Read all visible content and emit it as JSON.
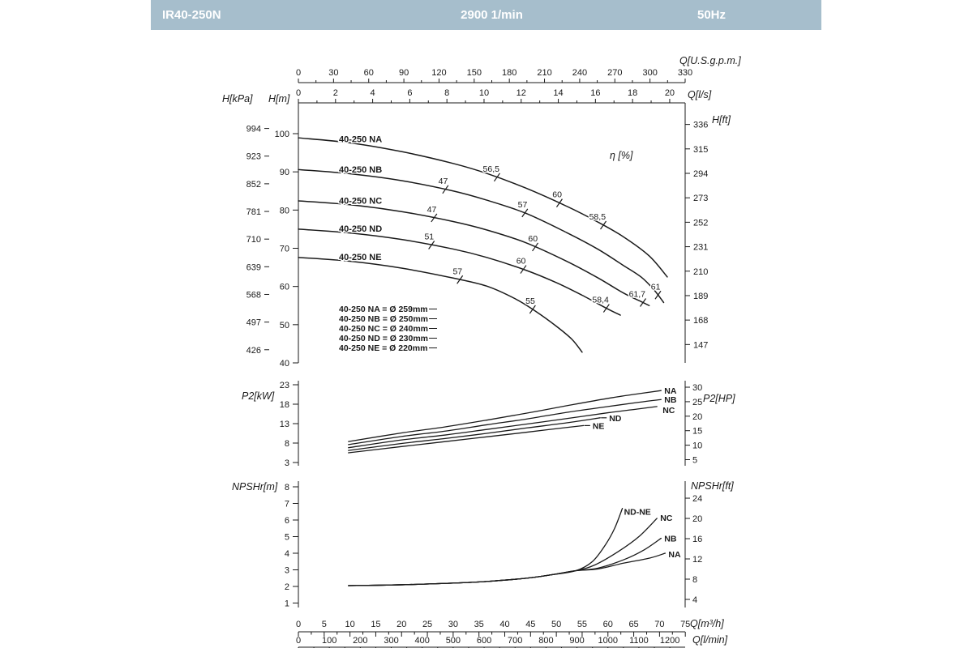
{
  "header": {
    "model": "IR40-250N",
    "speed": "2900 1/min",
    "frequency": "50Hz"
  },
  "chart_data": {
    "type": "line",
    "x_unit": "m3/h",
    "x_range": [
      0,
      75
    ],
    "x_axes": {
      "gpm": {
        "label": "Q[U.S.g.p.m.]",
        "ticks": [
          0,
          30,
          60,
          90,
          120,
          150,
          180,
          210,
          240,
          270,
          300,
          330
        ]
      },
      "ls": {
        "label": "Q[l/s]",
        "ticks": [
          0,
          2,
          4,
          6,
          8,
          10,
          12,
          14,
          16,
          18,
          20
        ]
      },
      "m3h": {
        "label": "Q[m³/h]",
        "ticks": [
          0,
          5,
          10,
          15,
          20,
          25,
          30,
          35,
          40,
          45,
          50,
          55,
          60,
          65,
          70,
          75
        ]
      },
      "lmin": {
        "label": "Q[l/min]",
        "ticks": [
          0,
          100,
          200,
          300,
          400,
          500,
          600,
          700,
          800,
          900,
          1000,
          1100,
          1200
        ]
      }
    },
    "head_chart": {
      "y_axes": {
        "kpa": {
          "label": "H[kPa]",
          "ticks": [
            994,
            923,
            852,
            781,
            710,
            639,
            568,
            497,
            426
          ]
        },
        "m": {
          "label": "H[m]",
          "ticks": [
            100,
            90,
            80,
            70,
            60,
            50,
            40
          ],
          "range": [
            40,
            105
          ]
        },
        "ft": {
          "label": "H[ft]",
          "ticks": [
            336,
            315,
            294,
            273,
            252,
            231,
            210,
            189,
            168,
            147
          ]
        }
      },
      "efficiency_label": "η [%]",
      "curves": [
        {
          "name": "40-250 NA",
          "impeller": "Ø 259mm",
          "points": [
            [
              0,
              98.9
            ],
            [
              10,
              97.6
            ],
            [
              20,
              95.3
            ],
            [
              30,
              92.2
            ],
            [
              36.5,
              89.6
            ],
            [
              44,
              85.8
            ],
            [
              52,
              81.0
            ],
            [
              58,
              76.9
            ],
            [
              63,
              73.0
            ],
            [
              68,
              68.0
            ],
            [
              71.5,
              62.5
            ]
          ]
        },
        {
          "name": "40-250 NB",
          "impeller": "Ø 250mm",
          "points": [
            [
              0,
              90.6
            ],
            [
              10,
              89.5
            ],
            [
              20,
              87.7
            ],
            [
              30,
              85.0
            ],
            [
              36.5,
              82.6
            ],
            [
              44,
              79.2
            ],
            [
              52,
              74.1
            ],
            [
              58,
              69.8
            ],
            [
              63,
              65.5
            ],
            [
              66.5,
              62.4
            ],
            [
              69,
              59.0
            ],
            [
              70.8,
              55.8
            ]
          ]
        },
        {
          "name": "40-250 NC",
          "impeller": "Ø 240mm",
          "points": [
            [
              0,
              82.4
            ],
            [
              10,
              81.4
            ],
            [
              20,
              79.6
            ],
            [
              30,
              77.0
            ],
            [
              36.5,
              74.8
            ],
            [
              44,
              71.5
            ],
            [
              52,
              66.6
            ],
            [
              58,
              62.3
            ],
            [
              63,
              58.3
            ],
            [
              66.5,
              56.0
            ],
            [
              68,
              55.0
            ]
          ]
        },
        {
          "name": "40-250 ND",
          "impeller": "Ø 230mm",
          "points": [
            [
              0,
              75.0
            ],
            [
              10,
              74.0
            ],
            [
              20,
              72.3
            ],
            [
              30,
              69.8
            ],
            [
              36.5,
              67.6
            ],
            [
              44,
              64.3
            ],
            [
              50,
              61.0
            ],
            [
              55,
              57.7
            ],
            [
              59.7,
              54.3
            ],
            [
              62.4,
              52.5
            ]
          ]
        },
        {
          "name": "40-250 NE",
          "impeller": "Ø 220mm",
          "points": [
            [
              0,
              67.6
            ],
            [
              10,
              66.6
            ],
            [
              20,
              64.8
            ],
            [
              30,
              62.2
            ],
            [
              36.5,
              60.1
            ],
            [
              42,
              56.8
            ],
            [
              46,
              53.5
            ],
            [
              50,
              49.6
            ],
            [
              53,
              46.2
            ],
            [
              55,
              42.8
            ]
          ]
        }
      ],
      "efficiency_marks": [
        {
          "label": "47",
          "curve": 1,
          "q": 28.5
        },
        {
          "label": "56,5",
          "curve": 0,
          "q": 38.5
        },
        {
          "label": "47",
          "curve": 2,
          "q": 26.3
        },
        {
          "label": "57",
          "curve": 1,
          "q": 43.9
        },
        {
          "label": "60",
          "curve": 0,
          "q": 50.6
        },
        {
          "label": "58,5",
          "curve": 0,
          "q": 59.1
        },
        {
          "label": "51",
          "curve": 3,
          "q": 25.8
        },
        {
          "label": "60",
          "curve": 2,
          "q": 45.9
        },
        {
          "label": "60",
          "curve": 3,
          "q": 43.6
        },
        {
          "label": "57",
          "curve": 4,
          "q": 31.3
        },
        {
          "label": "55",
          "curve": 4,
          "q": 45.4
        },
        {
          "label": "58,4",
          "curve": 3,
          "q": 59.7
        },
        {
          "label": "61,7",
          "curve": 2,
          "q": 66.8
        },
        {
          "label": "61",
          "curve": 1,
          "q": 69.7
        }
      ],
      "legend": [
        "40-250 NA = Ø 259mm",
        "40-250 NB = Ø 250mm",
        "40-250 NC = Ø 240mm",
        "40-250 ND = Ø 230mm",
        "40-250 NE = Ø 220mm"
      ]
    },
    "power_chart": {
      "y_axes": {
        "kw": {
          "label": "P2[kW]",
          "ticks": [
            23,
            18,
            13,
            8,
            3
          ]
        },
        "hp": {
          "label": "P2[HP]",
          "ticks": [
            30,
            25,
            20,
            15,
            10,
            5
          ]
        }
      },
      "curves": [
        {
          "name": "NA",
          "points": [
            [
              9.7,
              8.4
            ],
            [
              20,
              10.6
            ],
            [
              28.6,
              12.2
            ],
            [
              36.5,
              13.9
            ],
            [
              44.3,
              15.7
            ],
            [
              52,
              17.6
            ],
            [
              60,
              19.5
            ],
            [
              66,
              20.7
            ],
            [
              70.3,
              21.5
            ]
          ]
        },
        {
          "name": "NB",
          "points": [
            [
              9.7,
              7.6
            ],
            [
              20,
              9.7
            ],
            [
              28.6,
              11.1
            ],
            [
              36.5,
              12.7
            ],
            [
              44.3,
              14.2
            ],
            [
              52,
              15.9
            ],
            [
              60,
              17.4
            ],
            [
              66,
              18.5
            ],
            [
              70.3,
              19.2
            ]
          ]
        },
        {
          "name": "NC",
          "points": [
            [
              9.7,
              6.8
            ],
            [
              20,
              8.8
            ],
            [
              28.6,
              10.1
            ],
            [
              36.5,
              11.5
            ],
            [
              44.3,
              12.9
            ],
            [
              52,
              14.3
            ],
            [
              60,
              15.8
            ],
            [
              66,
              16.8
            ],
            [
              69.5,
              17.4
            ]
          ]
        },
        {
          "name": "ND",
          "points": [
            [
              9.7,
              6.1
            ],
            [
              20,
              7.9
            ],
            [
              28.6,
              9.2
            ],
            [
              36.5,
              10.5
            ],
            [
              44.3,
              11.9
            ],
            [
              52,
              13.2
            ],
            [
              58.5,
              14.5
            ]
          ]
        },
        {
          "name": "NE",
          "points": [
            [
              9.7,
              5.5
            ],
            [
              20,
              7.1
            ],
            [
              28.6,
              8.4
            ],
            [
              36.5,
              9.6
            ],
            [
              44.3,
              10.8
            ],
            [
              50,
              11.7
            ],
            [
              55.3,
              12.5
            ]
          ]
        }
      ]
    },
    "npsh_chart": {
      "y_axes": {
        "m": {
          "label": "NPSHr[m]",
          "ticks": [
            8,
            7,
            6,
            5,
            4,
            3,
            2,
            1
          ]
        },
        "ft": {
          "label": "NPSHr[ft]",
          "ticks": [
            24,
            20,
            16,
            12,
            8,
            4
          ]
        }
      },
      "curves": [
        {
          "name": "ND-NE",
          "points": [
            [
              9.7,
              2.05
            ],
            [
              20,
              2.1
            ],
            [
              30,
              2.2
            ],
            [
              36.5,
              2.3
            ],
            [
              44.3,
              2.5
            ],
            [
              49,
              2.7
            ],
            [
              53.8,
              2.95
            ],
            [
              57,
              3.5
            ],
            [
              59.5,
              4.5
            ],
            [
              61.3,
              5.5
            ],
            [
              62.8,
              6.7
            ]
          ]
        },
        {
          "name": "NC",
          "points": [
            [
              9.7,
              2.05
            ],
            [
              20,
              2.1
            ],
            [
              30,
              2.2
            ],
            [
              36.5,
              2.3
            ],
            [
              44.3,
              2.5
            ],
            [
              49,
              2.7
            ],
            [
              53.8,
              2.95
            ],
            [
              57.5,
              3.3
            ],
            [
              62,
              4.1
            ],
            [
              66,
              5.0
            ],
            [
              69.5,
              6.1
            ]
          ]
        },
        {
          "name": "NB",
          "points": [
            [
              9.7,
              2.05
            ],
            [
              20,
              2.1
            ],
            [
              30,
              2.2
            ],
            [
              36.5,
              2.3
            ],
            [
              44.3,
              2.5
            ],
            [
              49,
              2.7
            ],
            [
              53.8,
              2.95
            ],
            [
              58,
              3.1
            ],
            [
              63,
              3.6
            ],
            [
              67,
              4.2
            ],
            [
              70.3,
              4.9
            ]
          ]
        },
        {
          "name": "NA",
          "points": [
            [
              9.7,
              2.05
            ],
            [
              20,
              2.1
            ],
            [
              30,
              2.2
            ],
            [
              36.5,
              2.3
            ],
            [
              44.3,
              2.5
            ],
            [
              49,
              2.7
            ],
            [
              53.8,
              2.95
            ],
            [
              58,
              3.05
            ],
            [
              63,
              3.4
            ],
            [
              68,
              3.7
            ],
            [
              71.1,
              4.0
            ]
          ]
        }
      ]
    }
  }
}
